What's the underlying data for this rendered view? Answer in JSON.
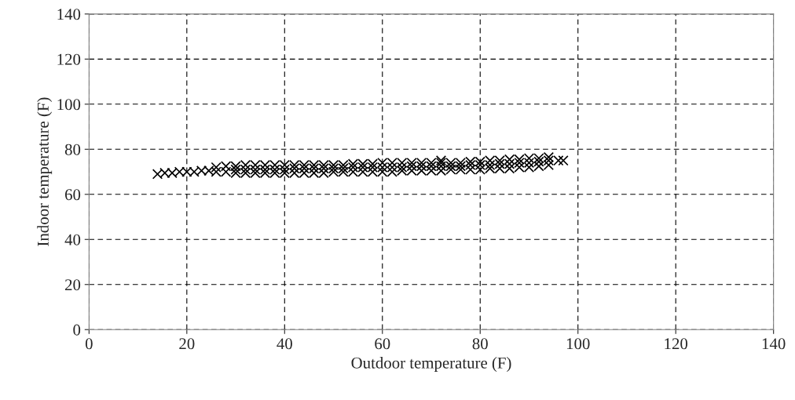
{
  "chart_data": {
    "type": "scatter",
    "xlabel": "Outdoor temperature (F)",
    "ylabel": "Indoor temperature (F)",
    "xlim": [
      0,
      140
    ],
    "xticks": [
      0,
      20,
      40,
      60,
      80,
      100,
      120,
      140
    ],
    "ylim": [
      0,
      140
    ],
    "yticks": [
      0,
      20,
      40,
      60,
      80,
      100,
      120,
      140
    ],
    "grid": true,
    "marker": "cross",
    "series": [
      {
        "color": "#000000",
        "x": [
          14,
          15.5,
          17,
          18.5,
          20,
          21.5,
          23,
          24.5,
          26,
          26,
          28,
          28,
          30,
          30,
          30,
          32,
          32,
          32,
          34,
          34,
          34,
          36,
          36,
          36,
          38,
          38,
          38,
          40,
          40,
          40,
          42,
          42,
          42,
          44,
          44,
          44,
          46,
          46,
          46,
          48,
          48,
          48,
          50,
          50,
          50,
          52,
          52,
          52,
          54,
          54,
          54,
          56,
          56,
          56,
          58,
          58,
          58,
          60,
          60,
          60,
          62,
          62,
          62,
          64,
          64,
          64,
          66,
          66,
          66,
          68,
          68,
          68,
          70,
          70,
          70,
          72,
          72,
          72,
          72,
          74,
          74,
          74,
          76,
          76,
          76,
          78,
          78,
          78,
          80,
          80,
          80,
          82,
          82,
          82,
          84,
          84,
          84,
          86,
          86,
          86,
          88,
          88,
          88,
          90,
          90,
          90,
          92,
          92,
          92,
          94,
          94,
          94,
          96,
          97
        ],
        "values": [
          69,
          69.5,
          69.5,
          70,
          70,
          70,
          70.5,
          70.5,
          70,
          72,
          70,
          72.5,
          69.5,
          71,
          72.5,
          69.5,
          71,
          73,
          69.5,
          71,
          73,
          69.5,
          71,
          73,
          69.5,
          71,
          73,
          69.5,
          71,
          73,
          69.5,
          71.5,
          73,
          69.5,
          71.5,
          73,
          69.5,
          71.5,
          73,
          69.5,
          71.5,
          73,
          70,
          71.5,
          73,
          70,
          71.5,
          73,
          70,
          72,
          73.5,
          70,
          72,
          73.5,
          70,
          72,
          73.5,
          70,
          72,
          74,
          70,
          72,
          74,
          70.5,
          72,
          74,
          70.5,
          72.5,
          74,
          70.5,
          72.5,
          74,
          70.5,
          72.5,
          74,
          70.5,
          72.5,
          74,
          75,
          71,
          72.5,
          74,
          71,
          72.5,
          74,
          71,
          73,
          74.5,
          71,
          73,
          74.5,
          71.5,
          73,
          75,
          71.5,
          73.5,
          75,
          71.5,
          73.5,
          75.5,
          72,
          74,
          75.5,
          72,
          74,
          76,
          72.5,
          74.5,
          76,
          73,
          75,
          76.5,
          75,
          75
        ]
      }
    ]
  }
}
